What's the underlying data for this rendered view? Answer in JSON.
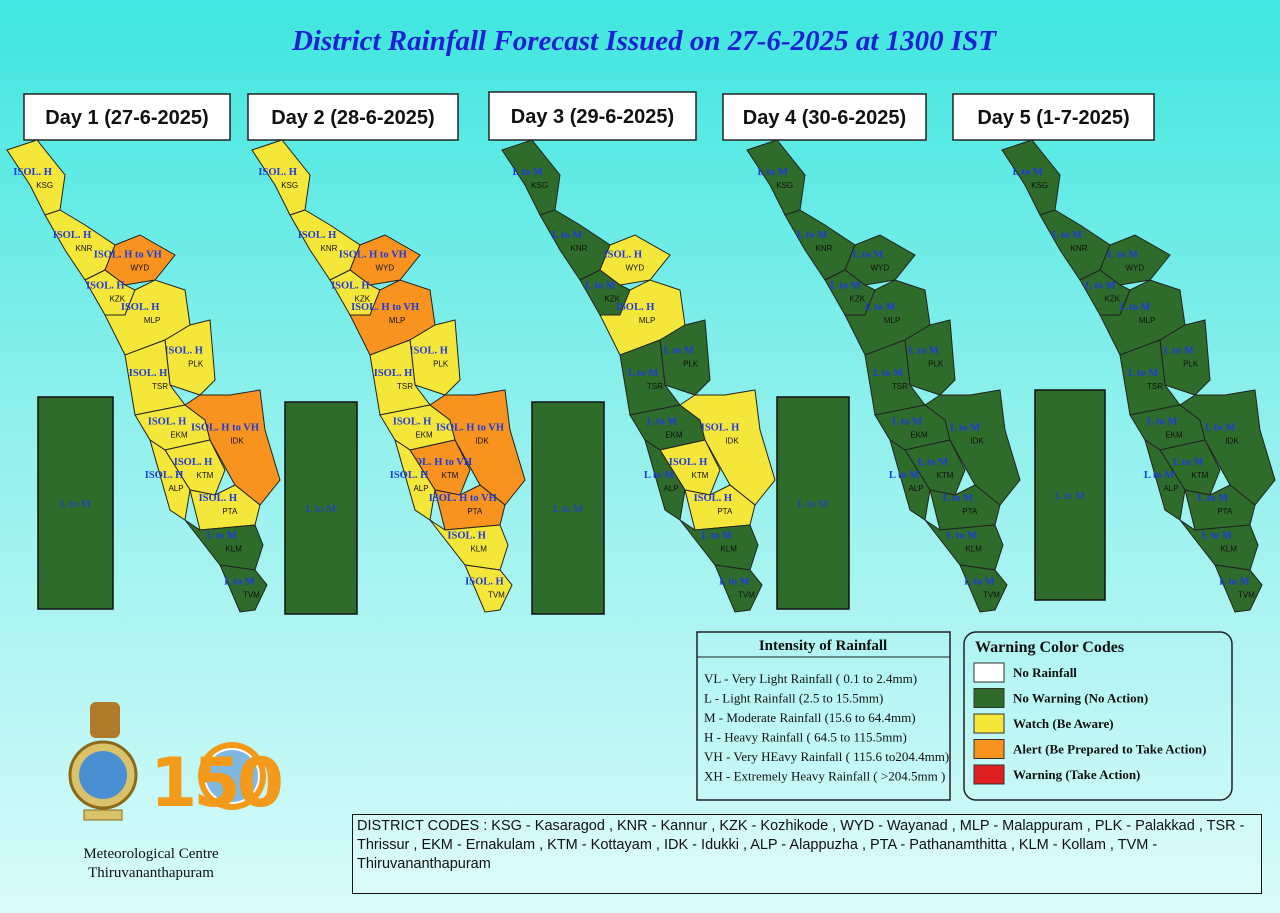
{
  "title": "District Rainfall Forecast Issued on  27-6-2025 at 1300 IST",
  "days": [
    {
      "label": "Day 1 (27-6-2025)",
      "lakshadweep": {
        "forecast": "L to M",
        "color": "#2f6b2a"
      },
      "districts": [
        {
          "code": "KSG",
          "forecast": "ISOL. H",
          "color": "#f5e63a"
        },
        {
          "code": "KNR",
          "forecast": "ISOL. H",
          "color": "#f5e63a"
        },
        {
          "code": "WYD",
          "forecast": "ISOL. H to VH",
          "color": "#f7931e"
        },
        {
          "code": "KZK",
          "forecast": "ISOL. H",
          "color": "#f5e63a"
        },
        {
          "code": "MLP",
          "forecast": "ISOL. H",
          "color": "#f5e63a"
        },
        {
          "code": "PLK",
          "forecast": "ISOL. H",
          "color": "#f5e63a"
        },
        {
          "code": "TSR",
          "forecast": "ISOL. H",
          "color": "#f5e63a"
        },
        {
          "code": "EKM",
          "forecast": "ISOL. H",
          "color": "#f5e63a"
        },
        {
          "code": "IDK",
          "forecast": "ISOL. H to VH",
          "color": "#f7931e"
        },
        {
          "code": "KTM",
          "forecast": "ISOL. H",
          "color": "#f5e63a"
        },
        {
          "code": "ALP",
          "forecast": "ISOL. H",
          "color": "#f5e63a"
        },
        {
          "code": "PTA",
          "forecast": "ISOL. H",
          "color": "#f5e63a"
        },
        {
          "code": "KLM",
          "forecast": "L to M",
          "color": "#2f6b2a"
        },
        {
          "code": "TVM",
          "forecast": "L to M",
          "color": "#2f6b2a"
        }
      ]
    },
    {
      "label": "Day 2 (28-6-2025)",
      "lakshadweep": {
        "forecast": "L to M",
        "color": "#2f6b2a"
      },
      "districts": [
        {
          "code": "KSG",
          "forecast": "ISOL. H",
          "color": "#f5e63a"
        },
        {
          "code": "KNR",
          "forecast": "ISOL. H",
          "color": "#f5e63a"
        },
        {
          "code": "WYD",
          "forecast": "ISOL. H to VH",
          "color": "#f7931e"
        },
        {
          "code": "KZK",
          "forecast": "ISOL. H",
          "color": "#f5e63a"
        },
        {
          "code": "MLP",
          "forecast": "ISOL. H to VH",
          "color": "#f7931e"
        },
        {
          "code": "PLK",
          "forecast": "ISOL. H",
          "color": "#f5e63a"
        },
        {
          "code": "TSR",
          "forecast": "ISOL. H",
          "color": "#f5e63a"
        },
        {
          "code": "EKM",
          "forecast": "ISOL. H",
          "color": "#f5e63a"
        },
        {
          "code": "IDK",
          "forecast": "ISOL. H to VH",
          "color": "#f7931e"
        },
        {
          "code": "KTM",
          "forecast": "ISOL. H to VH",
          "color": "#f7931e"
        },
        {
          "code": "ALP",
          "forecast": "ISOL. H",
          "color": "#f5e63a"
        },
        {
          "code": "PTA",
          "forecast": "ISOL. H to VH",
          "color": "#f7931e"
        },
        {
          "code": "KLM",
          "forecast": "ISOL. H",
          "color": "#f5e63a"
        },
        {
          "code": "TVM",
          "forecast": "ISOL. H",
          "color": "#f5e63a"
        }
      ]
    },
    {
      "label": "Day 3 (29-6-2025)",
      "lakshadweep": {
        "forecast": "L to M",
        "color": "#2f6b2a"
      },
      "districts": [
        {
          "code": "KSG",
          "forecast": "L to M",
          "color": "#2f6b2a"
        },
        {
          "code": "KNR",
          "forecast": "L to M",
          "color": "#2f6b2a"
        },
        {
          "code": "WYD",
          "forecast": "ISOL. H",
          "color": "#f5e63a"
        },
        {
          "code": "KZK",
          "forecast": "L to M",
          "color": "#2f6b2a"
        },
        {
          "code": "MLP",
          "forecast": "ISOL. H",
          "color": "#f5e63a"
        },
        {
          "code": "PLK",
          "forecast": "L to M",
          "color": "#2f6b2a"
        },
        {
          "code": "TSR",
          "forecast": "L to M",
          "color": "#2f6b2a"
        },
        {
          "code": "EKM",
          "forecast": "L to M",
          "color": "#2f6b2a"
        },
        {
          "code": "IDK",
          "forecast": "ISOL. H",
          "color": "#f5e63a"
        },
        {
          "code": "KTM",
          "forecast": "ISOL. H",
          "color": "#f5e63a"
        },
        {
          "code": "ALP",
          "forecast": "L to M",
          "color": "#2f6b2a"
        },
        {
          "code": "PTA",
          "forecast": "ISOL. H",
          "color": "#f5e63a"
        },
        {
          "code": "KLM",
          "forecast": "L to M",
          "color": "#2f6b2a"
        },
        {
          "code": "TVM",
          "forecast": "L to M",
          "color": "#2f6b2a"
        }
      ]
    },
    {
      "label": "Day 4 (30-6-2025)",
      "lakshadweep": {
        "forecast": "L to M",
        "color": "#2f6b2a"
      },
      "districts": [
        {
          "code": "KSG",
          "forecast": "L to M",
          "color": "#2f6b2a"
        },
        {
          "code": "KNR",
          "forecast": "L to M",
          "color": "#2f6b2a"
        },
        {
          "code": "WYD",
          "forecast": "L to M",
          "color": "#2f6b2a"
        },
        {
          "code": "KZK",
          "forecast": "L to M",
          "color": "#2f6b2a"
        },
        {
          "code": "MLP",
          "forecast": "L to M",
          "color": "#2f6b2a"
        },
        {
          "code": "PLK",
          "forecast": "L to M",
          "color": "#2f6b2a"
        },
        {
          "code": "TSR",
          "forecast": "L to M",
          "color": "#2f6b2a"
        },
        {
          "code": "EKM",
          "forecast": "L to M",
          "color": "#2f6b2a"
        },
        {
          "code": "IDK",
          "forecast": "L to M",
          "color": "#2f6b2a"
        },
        {
          "code": "KTM",
          "forecast": "L to M",
          "color": "#2f6b2a"
        },
        {
          "code": "ALP",
          "forecast": "L to M",
          "color": "#2f6b2a"
        },
        {
          "code": "PTA",
          "forecast": "L to M",
          "color": "#2f6b2a"
        },
        {
          "code": "KLM",
          "forecast": "L to M",
          "color": "#2f6b2a"
        },
        {
          "code": "TVM",
          "forecast": "L to M",
          "color": "#2f6b2a"
        }
      ]
    },
    {
      "label": "Day 5 (1-7-2025)",
      "lakshadweep": {
        "forecast": "L to M",
        "color": "#2f6b2a"
      },
      "districts": [
        {
          "code": "KSG",
          "forecast": "L to M",
          "color": "#2f6b2a"
        },
        {
          "code": "KNR",
          "forecast": "L to M",
          "color": "#2f6b2a"
        },
        {
          "code": "WYD",
          "forecast": "L to M",
          "color": "#2f6b2a"
        },
        {
          "code": "KZK",
          "forecast": "L to M",
          "color": "#2f6b2a"
        },
        {
          "code": "MLP",
          "forecast": "L to M",
          "color": "#2f6b2a"
        },
        {
          "code": "PLK",
          "forecast": "L to M",
          "color": "#2f6b2a"
        },
        {
          "code": "TSR",
          "forecast": "L to M",
          "color": "#2f6b2a"
        },
        {
          "code": "EKM",
          "forecast": "L to M",
          "color": "#2f6b2a"
        },
        {
          "code": "IDK",
          "forecast": "L to M",
          "color": "#2f6b2a"
        },
        {
          "code": "KTM",
          "forecast": "L to M",
          "color": "#2f6b2a"
        },
        {
          "code": "ALP",
          "forecast": "L to M",
          "color": "#2f6b2a"
        },
        {
          "code": "PTA",
          "forecast": "L to M",
          "color": "#2f6b2a"
        },
        {
          "code": "KLM",
          "forecast": "L to M",
          "color": "#2f6b2a"
        },
        {
          "code": "TVM",
          "forecast": "L to M",
          "color": "#2f6b2a"
        }
      ]
    }
  ],
  "intensity_legend": {
    "title": "Intensity of Rainfall",
    "items": [
      "VL - Very Light Rainfall ( 0.1 to 2.4mm)",
      "L  - Light Rainfall (2.5 to 15.5mm)",
      "M - Moderate Rainfall (15.6 to 64.4mm)",
      "H - Heavy Rainfall ( 64.5 to 115.5mm)",
      "VH - Very HEavy Rainfall ( 115.6 to204.4mm)",
      "XH - Extremely Heavy Rainfall ( >204.5mm )"
    ]
  },
  "warning_legend": {
    "title": "Warning Color Codes",
    "items": [
      {
        "label": "No Rainfall",
        "color": "#ffffff"
      },
      {
        "label": "No Warning (No Action)",
        "color": "#2f6b2a"
      },
      {
        "label": "Watch (Be Aware)",
        "color": "#f5e63a"
      },
      {
        "label": "Alert (Be Prepared to Take Action)",
        "color": "#f7931e"
      },
      {
        "label": "Warning (Take Action)",
        "color": "#e02020"
      }
    ]
  },
  "district_codes": "DISTRICT CODES : KSG - Kasaragod , KNR - Kannur , KZK - Kozhikode , WYD - Wayanad , MLP - Malappuram , PLK - Palakkad , TSR - Thrissur , EKM - Ernakulam , KTM - Kottayam , IDK - Idukki , ALP - Alappuzha ,      PTA - Pathanamthitta , KLM - Kollam , TVM - Thiruvananthapuram",
  "anniversary_logo": "150",
  "organization": [
    "Meteorological Centre",
    "Thiruvananthapuram"
  ]
}
